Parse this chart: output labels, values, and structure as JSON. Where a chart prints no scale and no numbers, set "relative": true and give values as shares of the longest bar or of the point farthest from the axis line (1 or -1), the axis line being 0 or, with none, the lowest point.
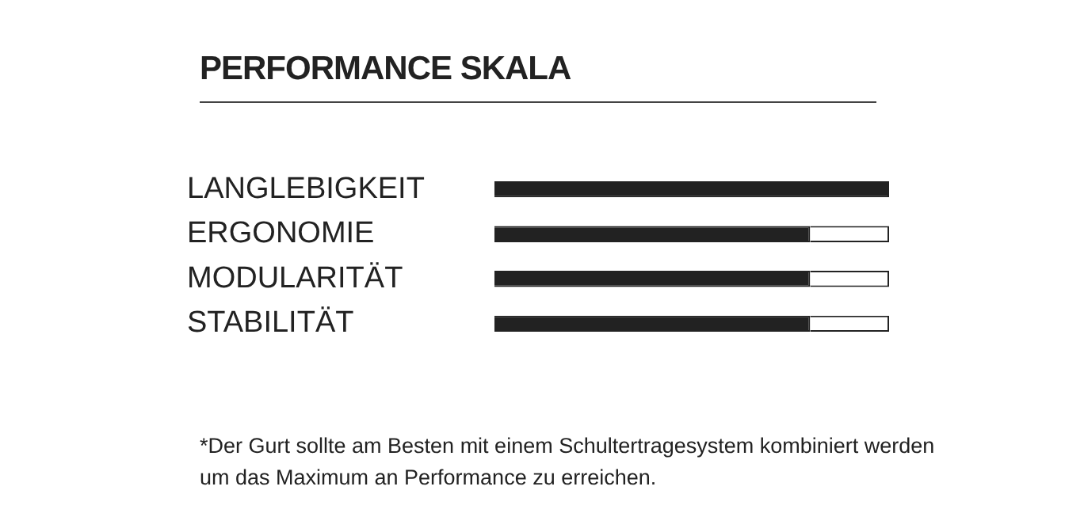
{
  "chart_data": {
    "type": "bar",
    "title": "PERFORMANCE SKALA",
    "orientation": "horizontal",
    "stacked": true,
    "relative": true,
    "categories": [
      "LANGLEBIGKEIT",
      "ERGONOMIE",
      "MODULARITÄT",
      "STABILITÄT"
    ],
    "series": [
      {
        "color": "#222222",
        "values": [
          1,
          0.8,
          0.8,
          0.8
        ]
      },
      {
        "color": "#ffffff",
        "values": [
          0,
          0.2,
          0.2,
          0.2
        ]
      }
    ],
    "annotations": [
      "*Der Gurt sollte am Besten mit einem Schultertragesystem kombiniert werden um das Maximum an Performance zu erreichen."
    ]
  }
}
